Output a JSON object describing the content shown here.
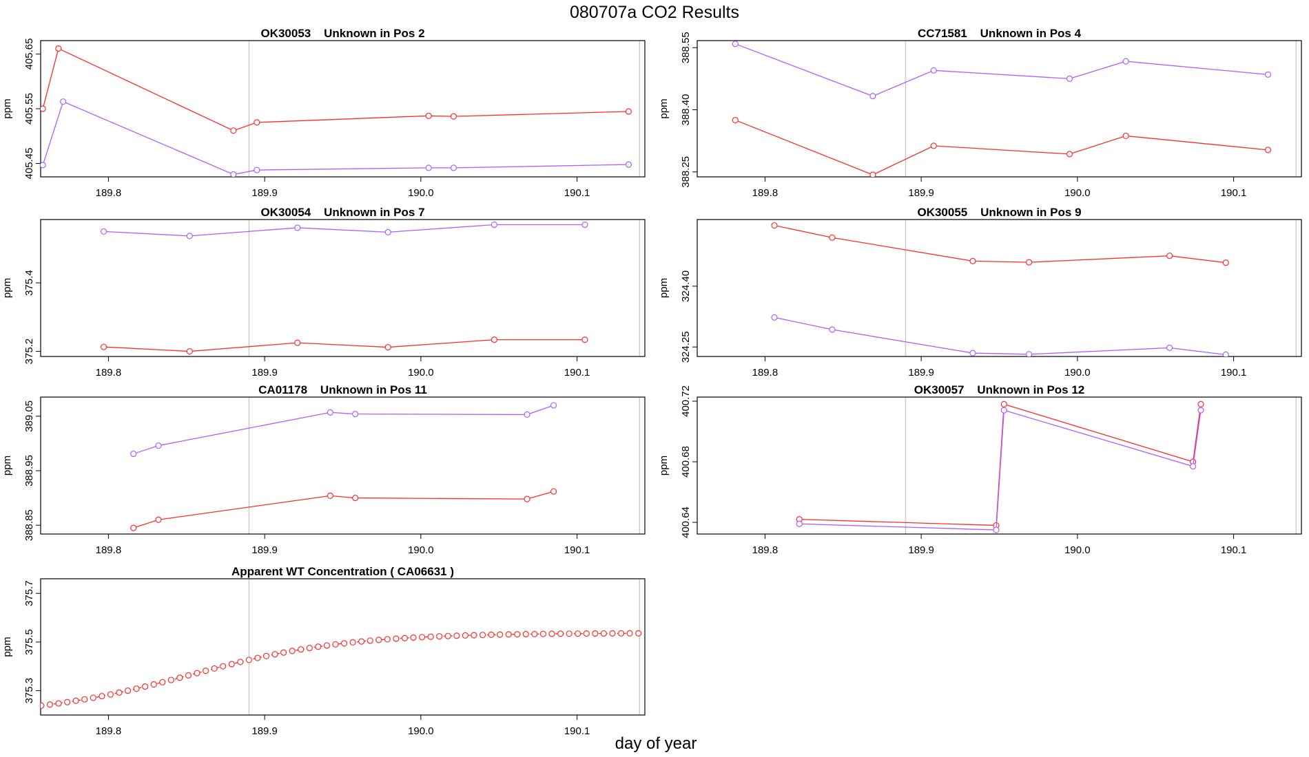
{
  "figure": {
    "title": "080707a  CO2 Results",
    "xlabel": "day of year"
  },
  "colors": {
    "red": "#ff2a2a",
    "purple": "#b15cff",
    "ref_line": "#cccccc",
    "axis": "#000000"
  },
  "chart_data": [
    {
      "type": "line",
      "title": "OK30053    Unknown in Pos 2",
      "ylabel": "ppm",
      "xlim": [
        189.7566,
        190.1434
      ],
      "ylim": [
        405.4255,
        405.6745
      ],
      "xticks": [
        "189.8",
        "189.9",
        "190.0",
        "190.1"
      ],
      "yticks": [
        "405.45",
        "405.55",
        "405.65"
      ],
      "vlines": [
        189.89,
        190.14
      ],
      "series": [
        {
          "name": "red",
          "color": "#ff2a2a",
          "x": [
            189.758,
            189.768,
            189.88,
            189.895,
            190.005,
            190.021,
            190.133
          ],
          "y": [
            405.55,
            405.66,
            405.51,
            405.525,
            405.537,
            405.536,
            405.545
          ]
        },
        {
          "name": "purple",
          "color": "#b15cff",
          "x": [
            189.758,
            189.771,
            189.88,
            189.895,
            190.005,
            190.021,
            190.133
          ],
          "y": [
            405.447,
            405.563,
            405.43,
            405.438,
            405.442,
            405.442,
            405.448
          ]
        }
      ]
    },
    {
      "type": "line",
      "title": "CC71581    Unknown in Pos 4",
      "ylabel": "ppm",
      "xlim": [
        189.7566,
        190.1434
      ],
      "ylim": [
        388.238,
        388.567
      ],
      "xticks": [
        "189.8",
        "189.9",
        "190.0",
        "190.1"
      ],
      "yticks": [
        "388.25",
        "388.40",
        "388.55"
      ],
      "vlines": [
        189.89,
        190.14
      ],
      "series": [
        {
          "name": "red",
          "color": "#ff2a2a",
          "x": [
            189.781,
            189.869,
            189.908,
            189.995,
            190.031,
            190.122
          ],
          "y": [
            388.375,
            388.243,
            388.313,
            388.293,
            388.337,
            388.303
          ]
        },
        {
          "name": "purple",
          "color": "#b15cff",
          "x": [
            189.781,
            189.869,
            189.908,
            189.995,
            190.031,
            190.122
          ],
          "y": [
            388.559,
            388.433,
            388.495,
            388.475,
            388.517,
            388.485
          ]
        }
      ]
    },
    {
      "type": "line",
      "title": "OK30054    Unknown in Pos 7",
      "ylabel": "ppm",
      "xlim": [
        189.7566,
        190.1434
      ],
      "ylim": [
        375.185,
        375.585
      ],
      "xticks": [
        "189.8",
        "189.9",
        "190.0",
        "190.1"
      ],
      "yticks": [
        "375.2",
        "375.4"
      ],
      "vlines": [
        189.89,
        190.14
      ],
      "series": [
        {
          "name": "purple",
          "color": "#b15cff",
          "x": [
            189.797,
            189.852,
            189.921,
            189.979,
            190.047,
            190.105
          ],
          "y": [
            375.55,
            375.537,
            375.561,
            375.548,
            375.57,
            375.57
          ]
        },
        {
          "name": "red",
          "color": "#ff2a2a",
          "x": [
            189.797,
            189.852,
            189.921,
            189.979,
            190.047,
            190.105
          ],
          "y": [
            375.213,
            375.2,
            375.225,
            375.212,
            375.234,
            375.234
          ]
        }
      ]
    },
    {
      "type": "line",
      "title": "OK30055    Unknown in Pos 9",
      "ylabel": "ppm",
      "xlim": [
        189.7566,
        190.1434
      ],
      "ylim": [
        324.2266,
        324.5645
      ],
      "xticks": [
        "189.8",
        "189.9",
        "190.0",
        "190.1"
      ],
      "yticks": [
        "324.25",
        "324.40"
      ],
      "vlines": [
        189.89,
        190.14
      ],
      "series": [
        {
          "name": "red",
          "color": "#ff2a2a",
          "x": [
            189.806,
            189.843,
            189.933,
            189.969,
            190.059,
            190.095
          ],
          "y": [
            324.55,
            324.52,
            324.462,
            324.459,
            324.475,
            324.458
          ]
        },
        {
          "name": "purple",
          "color": "#b15cff",
          "x": [
            189.806,
            189.843,
            189.933,
            189.969,
            190.059,
            190.095
          ],
          "y": [
            324.323,
            324.293,
            324.235,
            324.232,
            324.248,
            324.231
          ]
        }
      ]
    },
    {
      "type": "line",
      "title": "CA01178    Unknown in Pos 11",
      "ylabel": "ppm",
      "xlim": [
        189.7566,
        190.1434
      ],
      "ylim": [
        388.8338,
        389.0851
      ],
      "xticks": [
        "189.8",
        "189.9",
        "190.0",
        "190.1"
      ],
      "yticks": [
        "388.85",
        "388.95",
        "389.05"
      ],
      "vlines": [
        189.89,
        190.14
      ],
      "series": [
        {
          "name": "purple",
          "color": "#b15cff",
          "x": [
            189.816,
            189.832,
            189.942,
            189.958,
            190.068,
            190.085
          ],
          "y": [
            388.981,
            388.996,
            389.057,
            389.054,
            389.053,
            389.07
          ]
        },
        {
          "name": "red",
          "color": "#ff2a2a",
          "x": [
            189.816,
            189.832,
            189.942,
            189.958,
            190.068,
            190.085
          ],
          "y": [
            388.845,
            388.86,
            388.904,
            388.9,
            388.898,
            388.912
          ]
        }
      ]
    },
    {
      "type": "line",
      "title": "OK30057    Unknown in Pos 12",
      "ylabel": "ppm",
      "xlim": [
        189.7566,
        190.1434
      ],
      "ylim": [
        400.6323,
        400.7227
      ],
      "xticks": [
        "189.8",
        "189.9",
        "190.0",
        "190.1"
      ],
      "yticks": [
        "400.64",
        "400.68",
        "400.72"
      ],
      "vlines": [
        189.89,
        190.14
      ],
      "series": [
        {
          "name": "red",
          "color": "#ff2a2a",
          "x": [
            189.822,
            189.948,
            189.953,
            190.074,
            190.079
          ],
          "y": [
            400.642,
            400.638,
            400.718,
            400.68,
            400.718
          ]
        },
        {
          "name": "purple",
          "color": "#b15cff",
          "x": [
            189.822,
            189.948,
            189.953,
            190.074,
            190.079
          ],
          "y": [
            400.639,
            400.635,
            400.714,
            400.677,
            400.714
          ]
        }
      ]
    },
    {
      "type": "scatter",
      "title": "Apparent WT Concentration ( CA06631 )",
      "ylabel": "ppm",
      "xlim": [
        189.7566,
        190.1434
      ],
      "ylim": [
        375.2,
        375.76
      ],
      "xticks": [
        "189.8",
        "189.9",
        "190.0",
        "190.1"
      ],
      "yticks": [
        "375.3",
        "375.5",
        "375.7"
      ],
      "vlines": [
        189.89,
        190.14
      ],
      "series": [
        {
          "name": "red",
          "color": "#ff2a2a",
          "linestyle": "dashed",
          "x_start": 189.757,
          "x_step": 0.00554,
          "count": 70,
          "curve": {
            "base": 375.195,
            "amp": 0.342,
            "center": 189.853,
            "scale": 0.05
          }
        }
      ]
    }
  ]
}
